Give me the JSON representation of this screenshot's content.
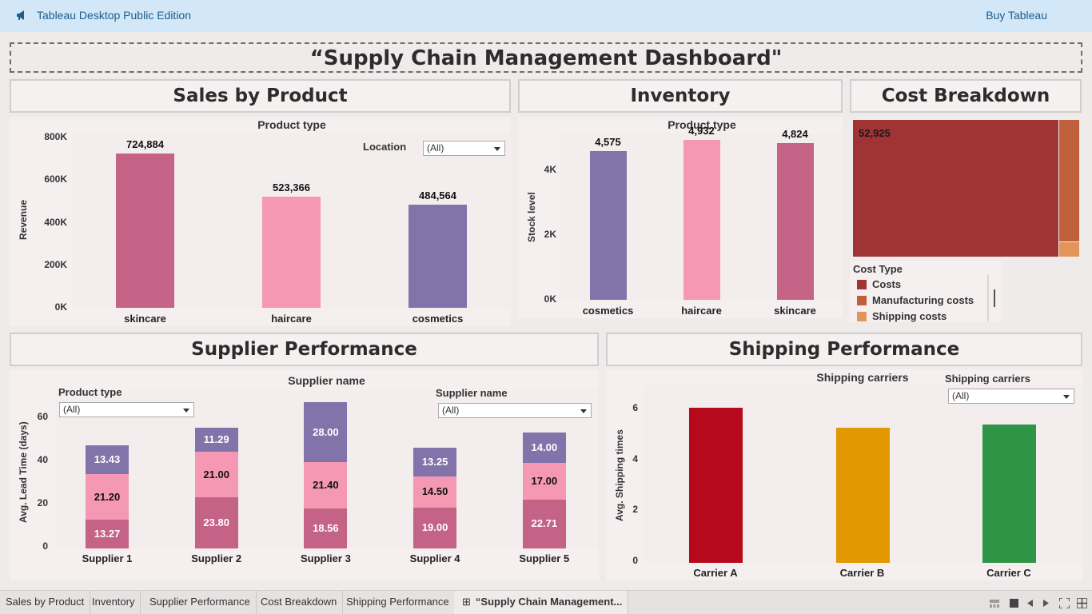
{
  "app": {
    "title": "Tableau Desktop Public Edition",
    "buy_label": "Buy Tableau",
    "icon": "megaphone-icon"
  },
  "dashboard_title": "“Supply Chain Management Dashboard\"",
  "colors": {
    "skincare": "#c46386",
    "haircare": "#f598b3",
    "cosmetics": "#8274aa",
    "costs": "#a03333",
    "manufacturing": "#c05f3c",
    "shipping": "#e1955a",
    "carrier_a": "#b7091c",
    "carrier_b": "#e29800",
    "carrier_c": "#2f9446"
  },
  "sales": {
    "section_title": "Sales by Product",
    "header": "Product type",
    "ylabel": "Revenue",
    "filter_label": "Location",
    "filter_value": "(All)",
    "chart_data": {
      "type": "bar",
      "categories": [
        "skincare",
        "haircare",
        "cosmetics"
      ],
      "values": [
        724884,
        523366,
        484564
      ],
      "value_labels": [
        "724,884",
        "523,366",
        "484,564"
      ],
      "yticks": [
        "800K",
        "600K",
        "400K",
        "200K",
        "0K"
      ],
      "ylim": [
        0,
        800000
      ]
    }
  },
  "inventory": {
    "section_title": "Inventory",
    "header": "Product type",
    "ylabel": "Stock level",
    "chart_data": {
      "type": "bar",
      "categories": [
        "cosmetics",
        "haircare",
        "skincare"
      ],
      "values": [
        4575,
        4932,
        4824
      ],
      "value_labels": [
        "4,575",
        "4,932",
        "4,824"
      ],
      "yticks": [
        "4K",
        "2K",
        "0K"
      ],
      "ylim": [
        0,
        5400
      ]
    }
  },
  "cost": {
    "section_title": "Cost Breakdown",
    "value_label": "52,925",
    "legend_title": "Cost Type",
    "legend": [
      "Costs",
      "Manufacturing costs",
      "Shipping costs"
    ]
  },
  "supplier": {
    "section_title": "Supplier Performance",
    "header": "Supplier name",
    "ylabel": "Avg. Lead Time (days)",
    "filter1_label": "Product type",
    "filter1_value": "(All)",
    "filter2_label": "Supplier name",
    "filter2_value": "(All)",
    "chart_data": {
      "type": "bar",
      "stacked": true,
      "categories": [
        "Supplier 1",
        "Supplier 2",
        "Supplier 3",
        "Supplier 4",
        "Supplier 5"
      ],
      "series": [
        {
          "values": [
            13.27,
            23.8,
            18.56,
            19.0,
            22.71
          ]
        },
        {
          "values": [
            21.2,
            21.0,
            21.4,
            14.5,
            17.0
          ]
        },
        {
          "values": [
            13.43,
            11.29,
            28.0,
            13.25,
            14.0
          ]
        }
      ],
      "yticks": [
        "60",
        "40",
        "20",
        "0"
      ],
      "ylim": [
        0,
        70
      ]
    }
  },
  "shipping": {
    "section_title": "Shipping Performance",
    "header": "Shipping carriers",
    "ylabel": "Avg. Shipping times",
    "filter_label": "Shipping carriers",
    "filter_value": "(All)",
    "chart_data": {
      "type": "bar",
      "categories": [
        "Carrier A",
        "Carrier B",
        "Carrier C"
      ],
      "values": [
        6.1,
        5.3,
        5.45
      ],
      "yticks": [
        "6",
        "4",
        "2",
        "0"
      ],
      "ylim": [
        0,
        6.6
      ]
    }
  },
  "tabs": [
    "Sales by Product",
    "Inventory",
    "Supplier Performance",
    "Cost Breakdown",
    "Shipping Performance",
    "“Supply Chain Management..."
  ]
}
